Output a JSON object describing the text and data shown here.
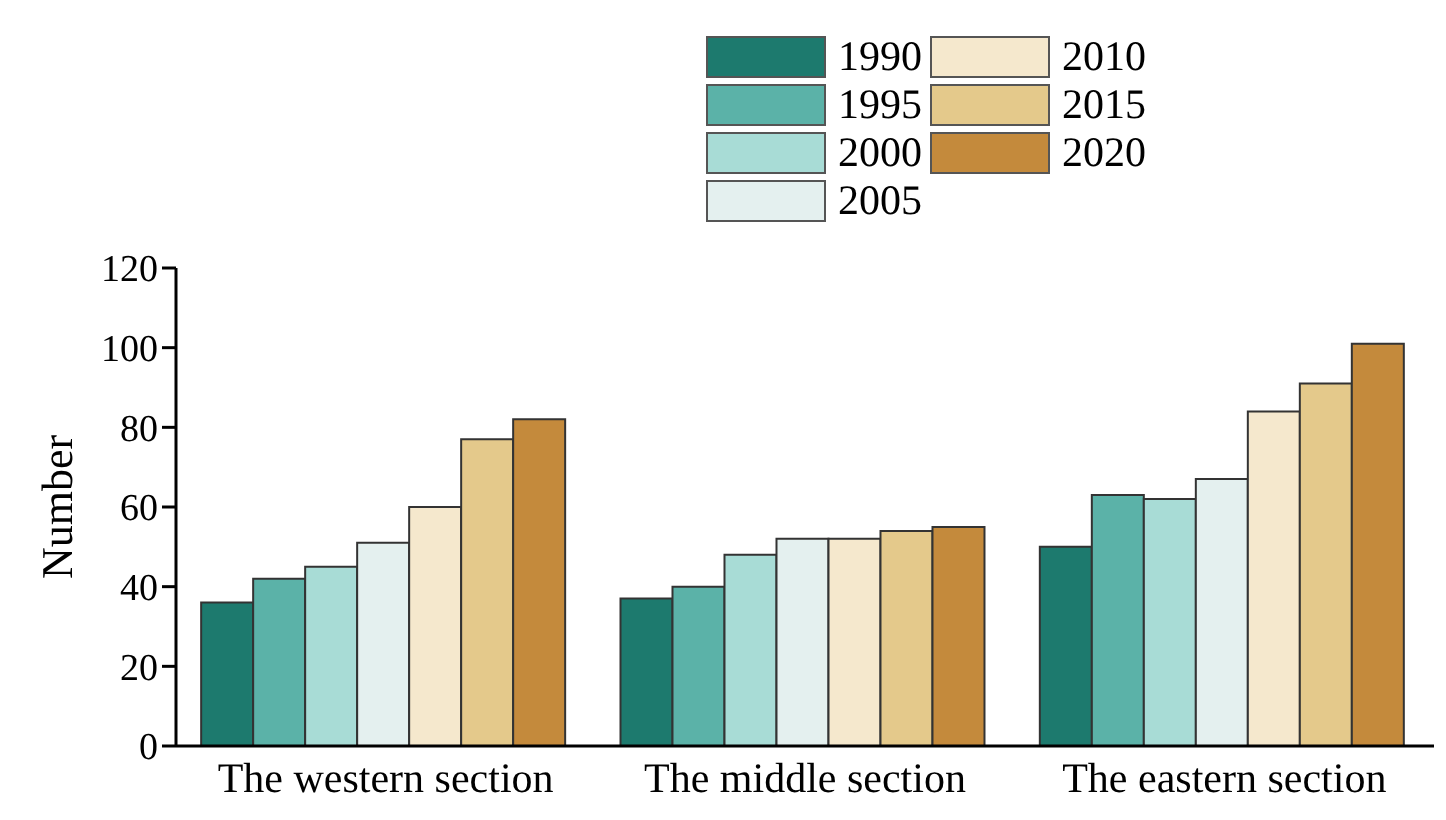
{
  "chart_data": {
    "type": "bar",
    "ylabel": "Number",
    "categories": [
      "The western section",
      "The middle section",
      "The eastern section"
    ],
    "series": [
      {
        "name": "1990",
        "color": "#1d7a6e",
        "values": [
          36,
          37,
          50
        ]
      },
      {
        "name": "1995",
        "color": "#5bb2a8",
        "values": [
          42,
          40,
          63
        ]
      },
      {
        "name": "2000",
        "color": "#a8dcd6",
        "values": [
          45,
          48,
          62
        ]
      },
      {
        "name": "2005",
        "color": "#e4f0ef",
        "values": [
          51,
          52,
          67
        ]
      },
      {
        "name": "2010",
        "color": "#f5e8cd",
        "values": [
          60,
          52,
          84
        ]
      },
      {
        "name": "2015",
        "color": "#e4c98b",
        "values": [
          77,
          54,
          91
        ]
      },
      {
        "name": "2020",
        "color": "#c48a3c",
        "values": [
          82,
          55,
          101
        ]
      }
    ],
    "ylim": [
      0,
      120
    ],
    "yticks": [
      0,
      20,
      40,
      60,
      80,
      100,
      120
    ],
    "grid": false,
    "legend": "top"
  }
}
